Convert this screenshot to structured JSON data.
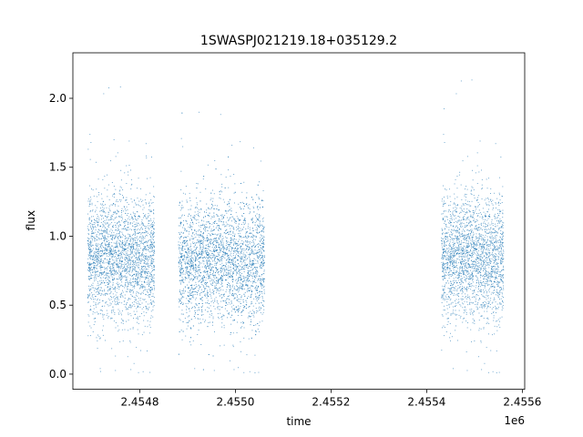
{
  "chart_data": {
    "type": "scatter",
    "title": "1SWASPJ021219.18+035129.2",
    "xlabel": "time",
    "ylabel": "flux",
    "x_offset_label": "1e6",
    "xlim": [
      2454660,
      2455605
    ],
    "ylim": [
      -0.11,
      2.33
    ],
    "x_ticks": [
      2454800,
      2455000,
      2455200,
      2455400,
      2455600
    ],
    "x_tick_labels": [
      "2.4548",
      "2.4550",
      "2.4552",
      "2.4554",
      "2.4556"
    ],
    "y_ticks": [
      0.0,
      0.5,
      1.0,
      1.5,
      2.0
    ],
    "y_tick_labels": [
      "0.0",
      "0.5",
      "1.0",
      "1.5",
      "2.0"
    ],
    "grid": false,
    "marker_color": "#1f77b4",
    "series": [
      {
        "observing_seasons": [
          {
            "x_start": 2454690,
            "x_end": 2454830,
            "flux_median": 0.85,
            "flux_low": 0.0,
            "flux_high": 2.15
          },
          {
            "x_start": 2454880,
            "x_end": 2455060,
            "flux_median": 0.82,
            "flux_low": 0.0,
            "flux_high": 1.95
          },
          {
            "x_start": 2455430,
            "x_end": 2455560,
            "flux_median": 0.85,
            "flux_low": 0.0,
            "flux_high": 2.2
          }
        ]
      }
    ]
  }
}
